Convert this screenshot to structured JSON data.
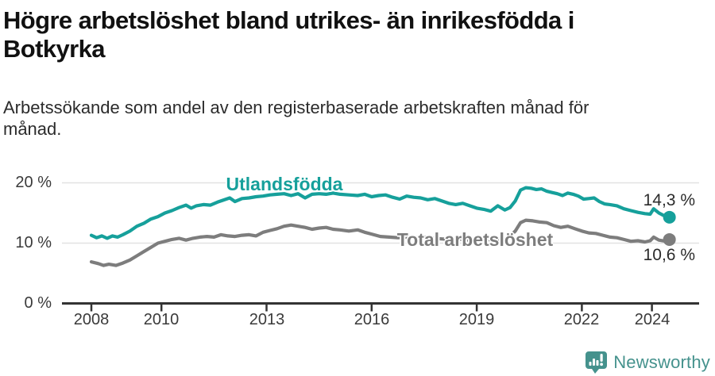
{
  "title": {
    "line1": "Högre arbetslöshet bland utrikes- än inrikesfödda i",
    "line2": "Botkyrka"
  },
  "subtitle": {
    "line1": "Arbetssökande som andel av den registerbaserade arbetskraften månad för",
    "line2": "månad."
  },
  "footer": {
    "brand": "Newsworthy",
    "logo_icon": "speech-bubble-bar-chart-icon"
  },
  "colors": {
    "series1": "#16a09b",
    "series2": "#7d7d7d",
    "axis": "#333333",
    "grid": "#e2e2e2",
    "text": "#2b2b2b",
    "brand_teal": "#45928d"
  },
  "chart_data": {
    "type": "line",
    "title": "Högre arbetslöshet bland utrikes- än inrikesfödda i Botkyrka",
    "subtitle": "Arbetssökande som andel av den registerbaserade arbetskraften månad för månad.",
    "xlabel": "",
    "ylabel": "",
    "grid": "horizontal",
    "xlim": [
      2007.15,
      2025.35
    ],
    "ylim": [
      0,
      22
    ],
    "x_ticks": [
      2008,
      2010,
      2013,
      2016,
      2019,
      2022,
      2024
    ],
    "x_tick_labels": [
      "2008",
      "2010",
      "2013",
      "2016",
      "2019",
      "2022",
      "2024"
    ],
    "y_ticks": [
      0,
      10,
      20
    ],
    "y_tick_labels": [
      "0 %",
      "10 %",
      "20 %"
    ],
    "series": [
      {
        "name": "Utlandsfödda",
        "color": "#16a09b",
        "end_value": 14.3,
        "end_label": "14,3 %",
        "points": [
          [
            2008.0,
            11.3
          ],
          [
            2008.15,
            10.9
          ],
          [
            2008.3,
            11.2
          ],
          [
            2008.45,
            10.8
          ],
          [
            2008.6,
            11.2
          ],
          [
            2008.75,
            11.0
          ],
          [
            2008.9,
            11.4
          ],
          [
            2009.1,
            12.0
          ],
          [
            2009.3,
            12.8
          ],
          [
            2009.5,
            13.3
          ],
          [
            2009.7,
            14.0
          ],
          [
            2009.9,
            14.4
          ],
          [
            2010.1,
            15.0
          ],
          [
            2010.3,
            15.4
          ],
          [
            2010.5,
            15.9
          ],
          [
            2010.7,
            16.3
          ],
          [
            2010.85,
            15.8
          ],
          [
            2011.0,
            16.2
          ],
          [
            2011.2,
            16.4
          ],
          [
            2011.4,
            16.3
          ],
          [
            2011.6,
            16.8
          ],
          [
            2011.8,
            17.2
          ],
          [
            2011.95,
            17.5
          ],
          [
            2012.1,
            16.9
          ],
          [
            2012.3,
            17.4
          ],
          [
            2012.5,
            17.5
          ],
          [
            2012.7,
            17.7
          ],
          [
            2012.9,
            17.8
          ],
          [
            2013.1,
            18.0
          ],
          [
            2013.3,
            18.1
          ],
          [
            2013.5,
            18.2
          ],
          [
            2013.7,
            17.9
          ],
          [
            2013.9,
            18.2
          ],
          [
            2014.1,
            17.5
          ],
          [
            2014.3,
            18.1
          ],
          [
            2014.5,
            18.2
          ],
          [
            2014.7,
            18.1
          ],
          [
            2014.9,
            18.3
          ],
          [
            2015.1,
            18.1
          ],
          [
            2015.35,
            18.0
          ],
          [
            2015.6,
            17.9
          ],
          [
            2015.8,
            18.1
          ],
          [
            2016.0,
            17.7
          ],
          [
            2016.2,
            17.9
          ],
          [
            2016.4,
            18.0
          ],
          [
            2016.6,
            17.6
          ],
          [
            2016.8,
            17.3
          ],
          [
            2017.0,
            17.8
          ],
          [
            2017.2,
            17.6
          ],
          [
            2017.4,
            17.5
          ],
          [
            2017.6,
            17.2
          ],
          [
            2017.8,
            17.4
          ],
          [
            2018.0,
            17.0
          ],
          [
            2018.2,
            16.6
          ],
          [
            2018.4,
            16.4
          ],
          [
            2018.6,
            16.6
          ],
          [
            2018.8,
            16.2
          ],
          [
            2019.0,
            15.8
          ],
          [
            2019.2,
            15.6
          ],
          [
            2019.4,
            15.3
          ],
          [
            2019.6,
            16.2
          ],
          [
            2019.8,
            15.5
          ],
          [
            2019.95,
            15.9
          ],
          [
            2020.1,
            17.0
          ],
          [
            2020.25,
            18.8
          ],
          [
            2020.4,
            19.2
          ],
          [
            2020.55,
            19.1
          ],
          [
            2020.7,
            18.9
          ],
          [
            2020.85,
            19.0
          ],
          [
            2021.0,
            18.6
          ],
          [
            2021.15,
            18.4
          ],
          [
            2021.3,
            18.2
          ],
          [
            2021.45,
            17.9
          ],
          [
            2021.6,
            18.3
          ],
          [
            2021.75,
            18.1
          ],
          [
            2021.9,
            17.8
          ],
          [
            2022.05,
            17.3
          ],
          [
            2022.2,
            17.4
          ],
          [
            2022.35,
            17.5
          ],
          [
            2022.5,
            16.9
          ],
          [
            2022.65,
            16.5
          ],
          [
            2022.8,
            16.4
          ],
          [
            2023.0,
            16.2
          ],
          [
            2023.2,
            15.7
          ],
          [
            2023.4,
            15.4
          ],
          [
            2023.6,
            15.1
          ],
          [
            2023.8,
            14.9
          ],
          [
            2023.95,
            14.8
          ],
          [
            2024.05,
            15.7
          ],
          [
            2024.2,
            15.0
          ],
          [
            2024.4,
            14.4
          ],
          [
            2024.5,
            14.3
          ]
        ]
      },
      {
        "name": "Total arbetslöshet",
        "color": "#7d7d7d",
        "end_value": 10.6,
        "end_label": "10,6 %",
        "points": [
          [
            2008.0,
            6.9
          ],
          [
            2008.2,
            6.6
          ],
          [
            2008.35,
            6.3
          ],
          [
            2008.5,
            6.5
          ],
          [
            2008.7,
            6.3
          ],
          [
            2008.9,
            6.7
          ],
          [
            2009.1,
            7.2
          ],
          [
            2009.3,
            7.9
          ],
          [
            2009.5,
            8.6
          ],
          [
            2009.7,
            9.3
          ],
          [
            2009.9,
            10.0
          ],
          [
            2010.1,
            10.3
          ],
          [
            2010.3,
            10.6
          ],
          [
            2010.5,
            10.8
          ],
          [
            2010.7,
            10.5
          ],
          [
            2010.9,
            10.8
          ],
          [
            2011.1,
            11.0
          ],
          [
            2011.3,
            11.1
          ],
          [
            2011.5,
            11.0
          ],
          [
            2011.7,
            11.4
          ],
          [
            2011.9,
            11.2
          ],
          [
            2012.1,
            11.1
          ],
          [
            2012.3,
            11.3
          ],
          [
            2012.5,
            11.4
          ],
          [
            2012.7,
            11.2
          ],
          [
            2012.9,
            11.8
          ],
          [
            2013.1,
            12.1
          ],
          [
            2013.3,
            12.4
          ],
          [
            2013.5,
            12.8
          ],
          [
            2013.7,
            13.0
          ],
          [
            2013.9,
            12.8
          ],
          [
            2014.1,
            12.6
          ],
          [
            2014.3,
            12.3
          ],
          [
            2014.5,
            12.5
          ],
          [
            2014.7,
            12.6
          ],
          [
            2014.9,
            12.3
          ],
          [
            2015.1,
            12.2
          ],
          [
            2015.35,
            12.0
          ],
          [
            2015.6,
            12.2
          ],
          [
            2015.8,
            11.8
          ],
          [
            2016.0,
            11.5
          ],
          [
            2016.25,
            11.1
          ],
          [
            2016.5,
            11.0
          ],
          [
            2016.75,
            10.9
          ],
          [
            2017.0,
            11.0
          ],
          [
            2017.25,
            10.9
          ],
          [
            2017.5,
            11.0
          ],
          [
            2017.75,
            10.8
          ],
          [
            2018.0,
            10.7
          ],
          [
            2018.25,
            10.6
          ],
          [
            2018.5,
            10.7
          ],
          [
            2018.75,
            10.5
          ],
          [
            2019.0,
            10.4
          ],
          [
            2019.25,
            10.5
          ],
          [
            2019.5,
            10.7
          ],
          [
            2019.7,
            10.5
          ],
          [
            2019.9,
            10.9
          ],
          [
            2020.1,
            12.0
          ],
          [
            2020.25,
            13.4
          ],
          [
            2020.4,
            13.8
          ],
          [
            2020.6,
            13.7
          ],
          [
            2020.8,
            13.5
          ],
          [
            2021.0,
            13.4
          ],
          [
            2021.2,
            12.9
          ],
          [
            2021.4,
            12.6
          ],
          [
            2021.6,
            12.8
          ],
          [
            2021.8,
            12.4
          ],
          [
            2022.0,
            12.0
          ],
          [
            2022.2,
            11.7
          ],
          [
            2022.4,
            11.6
          ],
          [
            2022.6,
            11.3
          ],
          [
            2022.8,
            11.0
          ],
          [
            2023.0,
            10.9
          ],
          [
            2023.2,
            10.6
          ],
          [
            2023.4,
            10.3
          ],
          [
            2023.6,
            10.4
          ],
          [
            2023.8,
            10.2
          ],
          [
            2023.95,
            10.4
          ],
          [
            2024.05,
            11.0
          ],
          [
            2024.2,
            10.5
          ],
          [
            2024.4,
            10.3
          ],
          [
            2024.5,
            10.6
          ]
        ]
      }
    ],
    "legend_position": "inline-labels"
  }
}
